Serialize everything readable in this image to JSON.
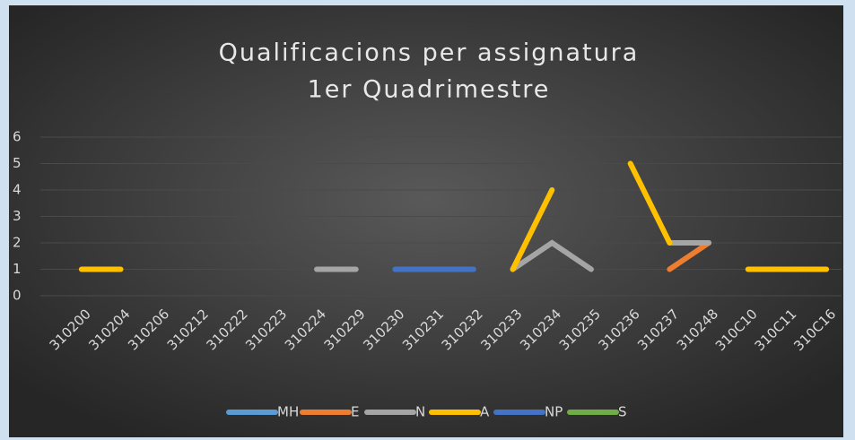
{
  "chart_data": {
    "type": "line",
    "title": "Qualificacions per assignatura",
    "subtitle": "1er Quadrimestre",
    "categories": [
      "310200",
      "310204",
      "310206",
      "310212",
      "310222",
      "310223",
      "310224",
      "310229",
      "310230",
      "310231",
      "310232",
      "310233",
      "310234",
      "310235",
      "310236",
      "310237",
      "310248",
      "310C10",
      "310C11",
      "310C16"
    ],
    "series": [
      {
        "name": "MH",
        "color": "#5b9bd5",
        "values": [
          null,
          null,
          null,
          null,
          null,
          null,
          null,
          null,
          null,
          null,
          null,
          null,
          null,
          null,
          null,
          null,
          null,
          null,
          null,
          null
        ]
      },
      {
        "name": "E",
        "color": "#ed7d31",
        "values": [
          null,
          null,
          null,
          null,
          null,
          null,
          null,
          null,
          null,
          null,
          null,
          null,
          null,
          null,
          null,
          1,
          2,
          null,
          null,
          null
        ]
      },
      {
        "name": "N",
        "color": "#a5a5a5",
        "values": [
          null,
          null,
          null,
          null,
          null,
          null,
          1,
          1,
          null,
          null,
          null,
          1,
          2,
          1,
          null,
          2,
          2,
          null,
          null,
          null
        ]
      },
      {
        "name": "A",
        "color": "#ffc000",
        "values": [
          1,
          1,
          null,
          null,
          null,
          null,
          null,
          null,
          null,
          null,
          null,
          1,
          4,
          null,
          5,
          2,
          null,
          1,
          1,
          1
        ]
      },
      {
        "name": "NP",
        "color": "#4472c4",
        "values": [
          null,
          null,
          null,
          null,
          null,
          null,
          null,
          null,
          1,
          1,
          1,
          null,
          null,
          null,
          null,
          null,
          null,
          null,
          null,
          null
        ]
      },
      {
        "name": "S",
        "color": "#70ad47",
        "values": [
          null,
          null,
          null,
          null,
          null,
          null,
          null,
          null,
          null,
          null,
          null,
          null,
          null,
          null,
          null,
          null,
          null,
          null,
          null,
          null
        ]
      }
    ],
    "ylim": [
      0,
      6
    ],
    "yticks": [
      0,
      1,
      2,
      3,
      4,
      5,
      6
    ],
    "grid": true,
    "legend": "bottom"
  }
}
